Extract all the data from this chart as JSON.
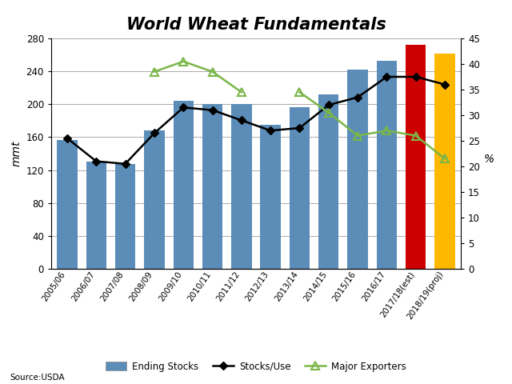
{
  "categories": [
    "2005/06",
    "2006/07",
    "2007/08",
    "2008/09",
    "2009/10",
    "2010/11",
    "2011/12",
    "2012/13",
    "2013/14",
    "2014/15",
    "2015/16",
    "2016/17",
    "2017/18(est)",
    "2018/19(proj)"
  ],
  "ending_stocks": [
    157,
    130,
    127,
    168,
    204,
    200,
    200,
    175,
    196,
    212,
    242,
    253,
    272,
    262
  ],
  "bar_colors": [
    "#5B8DB8",
    "#5B8DB8",
    "#5B8DB8",
    "#5B8DB8",
    "#5B8DB8",
    "#5B8DB8",
    "#5B8DB8",
    "#5B8DB8",
    "#5B8DB8",
    "#5B8DB8",
    "#5B8DB8",
    "#5B8DB8",
    "#CC0000",
    "#FFB800"
  ],
  "stocks_use": [
    25.5,
    21.0,
    20.5,
    26.5,
    31.5,
    31.0,
    29.0,
    27.0,
    27.5,
    32.0,
    33.5,
    37.5,
    37.5,
    36.0
  ],
  "major_exporters": [
    null,
    null,
    null,
    38.5,
    40.5,
    38.5,
    34.5,
    null,
    34.5,
    30.5,
    26.0,
    27.0,
    26.0,
    21.5
  ],
  "title": "World Wheat Fundamentals",
  "ylabel_left": "mmt",
  "ylabel_right": "%",
  "ylim_left": [
    0,
    280
  ],
  "ylim_right": [
    0,
    45
  ],
  "yticks_left": [
    0,
    40,
    80,
    120,
    160,
    200,
    240,
    280
  ],
  "yticks_right": [
    0,
    5,
    10,
    15,
    20,
    25,
    30,
    35,
    40,
    45
  ],
  "source": "Source:USDA",
  "legend_labels": [
    "Ending Stocks",
    "Stocks/Use",
    "Major Exporters"
  ],
  "bar_color_blue": "#5B8DB8",
  "line_color_black": "#000000",
  "line_color_green": "#7ab648",
  "background_color": "#ffffff",
  "grid_color": "#aaaaaa"
}
